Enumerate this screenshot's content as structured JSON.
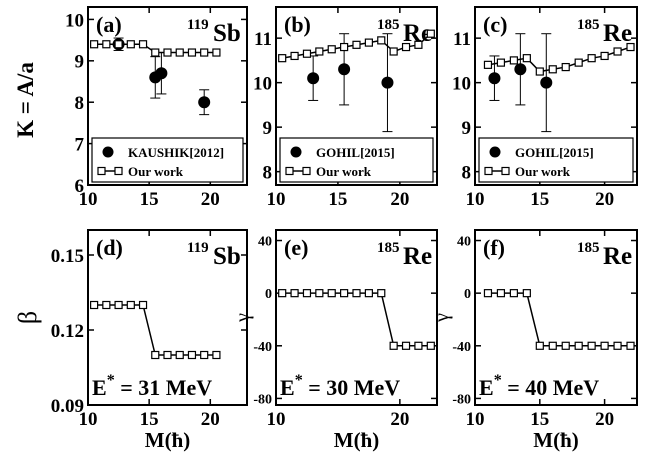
{
  "figure": {
    "ylabel_top": "K = A/a",
    "xlabel_bottom": "M(ħ)"
  },
  "chart_data": [
    {
      "id": "a",
      "type": "line",
      "panel_label": "(a)",
      "nucleus_mass": "119",
      "nucleus_symbol": "Sb",
      "xlim": [
        10,
        23
      ],
      "ylim": [
        6,
        10.3
      ],
      "xticks": [
        "10",
        "15",
        "20"
      ],
      "yticks": [
        "6",
        "7",
        "8",
        "9",
        "10"
      ],
      "ylabel": "K = A/a",
      "xlabel": "",
      "legend": "bottom",
      "series": [
        {
          "name": "KAUSHIK[2012]",
          "style": "points-errorbars",
          "x": [
            12.5,
            15.5,
            16.0,
            19.5
          ],
          "y": [
            9.4,
            8.6,
            8.7,
            8.0
          ],
          "err": [
            0.15,
            0.5,
            0.5,
            0.3
          ]
        },
        {
          "name": "Our work",
          "style": "line-open-squares",
          "x": [
            10.5,
            11.5,
            12.5,
            13.5,
            14.5,
            15.5,
            16.5,
            17.5,
            18.5,
            19.5,
            20.5
          ],
          "y": [
            9.4,
            9.4,
            9.4,
            9.4,
            9.4,
            9.2,
            9.2,
            9.2,
            9.2,
            9.2,
            9.2
          ]
        }
      ]
    },
    {
      "id": "b",
      "type": "line",
      "panel_label": "(b)",
      "nucleus_mass": "185",
      "nucleus_symbol": "Re",
      "xlim": [
        10,
        23
      ],
      "ylim": [
        7.7,
        11.7
      ],
      "xticks": [
        "10",
        "15",
        "20"
      ],
      "yticks": [
        "8",
        "9",
        "10",
        "11"
      ],
      "ylabel": "",
      "xlabel": "",
      "legend": "bottom",
      "series": [
        {
          "name": "GOHIL[2015]",
          "style": "points-errorbars",
          "x": [
            13.0,
            15.5,
            19.0
          ],
          "y": [
            10.1,
            10.3,
            10.0
          ],
          "err": [
            0.5,
            0.8,
            1.1
          ]
        },
        {
          "name": "Our work",
          "style": "line-open-squares",
          "x": [
            10.5,
            11.5,
            12.5,
            13.5,
            14.5,
            15.5,
            16.5,
            17.5,
            18.5,
            19.5,
            20.5,
            21.5,
            22.5
          ],
          "y": [
            10.55,
            10.6,
            10.65,
            10.7,
            10.75,
            10.8,
            10.85,
            10.9,
            10.95,
            10.7,
            10.8,
            10.85,
            11.1
          ]
        }
      ]
    },
    {
      "id": "c",
      "type": "line",
      "panel_label": "(c)",
      "nucleus_mass": "185",
      "nucleus_symbol": "Re",
      "xlim": [
        10,
        22.5
      ],
      "ylim": [
        7.7,
        11.7
      ],
      "xticks": [
        "10",
        "15",
        "20"
      ],
      "yticks": [
        "8",
        "9",
        "10",
        "11"
      ],
      "ylabel": "",
      "xlabel": "",
      "legend": "bottom",
      "series": [
        {
          "name": "GOHIL[2015]",
          "style": "points-errorbars",
          "x": [
            11.5,
            13.5,
            15.5
          ],
          "y": [
            10.1,
            10.3,
            10.0
          ],
          "err": [
            0.5,
            0.8,
            1.1
          ]
        },
        {
          "name": "Our work",
          "style": "line-open-squares",
          "x": [
            11.0,
            12.0,
            13.0,
            14.0,
            15.0,
            16.0,
            17.0,
            18.0,
            19.0,
            20.0,
            21.0,
            22.0
          ],
          "y": [
            10.4,
            10.45,
            10.5,
            10.55,
            10.25,
            10.3,
            10.35,
            10.45,
            10.55,
            10.6,
            10.7,
            10.8
          ]
        }
      ]
    },
    {
      "id": "d",
      "type": "line",
      "panel_label": "(d)",
      "nucleus_mass": "119",
      "nucleus_symbol": "Sb",
      "annotation_prefix": "E",
      "annotation_sup": "*",
      "annotation_value": " = 31 MeV",
      "xlim": [
        10,
        23
      ],
      "ylim": [
        0.09,
        0.16
      ],
      "xticks": [
        "10",
        "15",
        "20"
      ],
      "yticks": [
        "0.09",
        "0.12",
        "0.15"
      ],
      "ylabel": "β",
      "xlabel": "M(ħ)",
      "series": [
        {
          "name": "",
          "style": "line-open-squares",
          "x": [
            10.5,
            11.5,
            12.5,
            13.5,
            14.5,
            15.5,
            16.5,
            17.5,
            18.5,
            19.5,
            20.5
          ],
          "y": [
            0.13,
            0.13,
            0.13,
            0.13,
            0.13,
            0.11,
            0.11,
            0.11,
            0.11,
            0.11,
            0.11
          ]
        }
      ]
    },
    {
      "id": "e",
      "type": "line",
      "panel_label": "(e)",
      "nucleus_mass": "185",
      "nucleus_symbol": "Re",
      "annotation_prefix": "E",
      "annotation_sup": "*",
      "annotation_value": " = 30 MeV",
      "xlim": [
        10,
        23
      ],
      "ylim": [
        -85,
        48
      ],
      "xticks": [
        "10",
        "20"
      ],
      "yticks": [
        "40",
        "0",
        "-40",
        "-80"
      ],
      "ylabel": "γ",
      "xlabel": "M(ħ)",
      "series": [
        {
          "name": "",
          "style": "line-open-squares",
          "x": [
            10.5,
            11.5,
            12.5,
            13.5,
            14.5,
            15.5,
            16.5,
            17.5,
            18.5,
            19.5,
            20.5,
            21.5,
            22.5
          ],
          "y": [
            0,
            0,
            0,
            0,
            0,
            0,
            0,
            0,
            0,
            -40,
            -40,
            -40,
            -40
          ]
        }
      ]
    },
    {
      "id": "f",
      "type": "line",
      "panel_label": "(f)",
      "nucleus_mass": "185",
      "nucleus_symbol": "Re",
      "annotation_prefix": "E",
      "annotation_sup": "*",
      "annotation_value": " = 40 MeV",
      "xlim": [
        10,
        22.5
      ],
      "ylim": [
        -85,
        48
      ],
      "xticks": [
        "10",
        "15",
        "20"
      ],
      "yticks": [
        "40",
        "0",
        "-40",
        "-80"
      ],
      "ylabel": "γ",
      "xlabel": "M(ħ)",
      "series": [
        {
          "name": "",
          "style": "line-open-squares",
          "x": [
            11.0,
            12.0,
            13.0,
            14.0,
            15.0,
            16.0,
            17.0,
            18.0,
            19.0,
            20.0,
            21.0,
            22.0
          ],
          "y": [
            0,
            0,
            0,
            0,
            -40,
            -40,
            -40,
            -40,
            -40,
            -40,
            -40,
            -40
          ]
        }
      ]
    }
  ]
}
